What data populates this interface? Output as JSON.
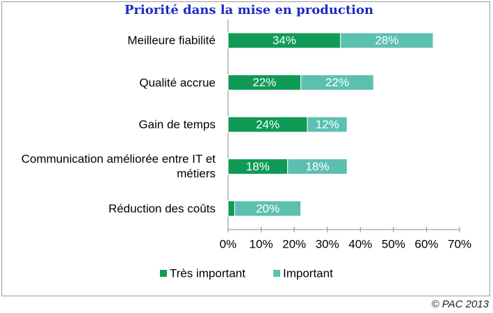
{
  "chart_data": {
    "type": "stacked-bar-horizontal",
    "title": "Priorité dans la mise en production",
    "categories": [
      "Meilleure fiabilité",
      "Qualité accrue",
      "Gain de temps",
      "Communication améliorée entre IT et métiers",
      "Réduction des coûts"
    ],
    "series": [
      {
        "name": "Très important",
        "color": "#0f9b56",
        "values": [
          34,
          22,
          24,
          18,
          2
        ],
        "value_labels": [
          "34%",
          "22%",
          "24%",
          "18%",
          null
        ]
      },
      {
        "name": "Important",
        "color": "#5cc0b1",
        "values": [
          28,
          22,
          12,
          18,
          20
        ],
        "value_labels": [
          "28%",
          "22%",
          "12%",
          "18%",
          "20%"
        ]
      }
    ],
    "xlim": [
      0,
      70
    ],
    "xticks": [
      {
        "value": 0,
        "label": "0%"
      },
      {
        "value": 10,
        "label": "10%"
      },
      {
        "value": 20,
        "label": "20%"
      },
      {
        "value": 30,
        "label": "30%"
      },
      {
        "value": 40,
        "label": "40%"
      },
      {
        "value": 50,
        "label": "50%"
      },
      {
        "value": 60,
        "label": "60%"
      },
      {
        "value": 70,
        "label": "70%"
      }
    ],
    "legend": "bottom",
    "footer": "© PAC 2013"
  }
}
